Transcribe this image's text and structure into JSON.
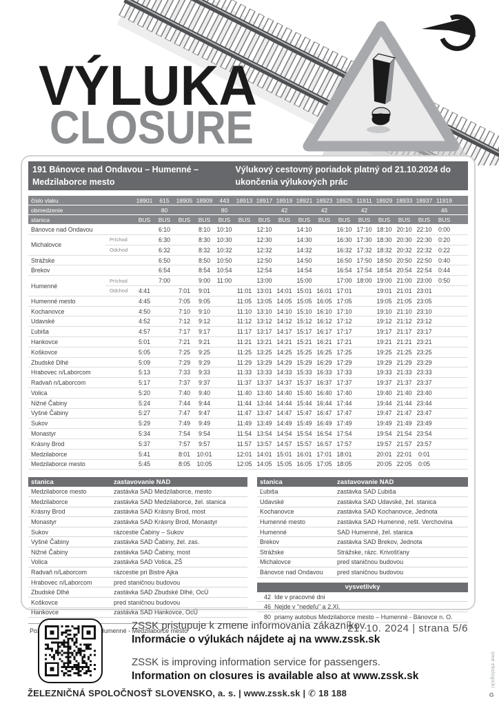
{
  "page": {
    "headline": "VÝLUKA",
    "headline_sub": "CLOSURE",
    "side_note": "sme ekologickí",
    "icons": {
      "phone": "✆",
      "recycle": "♻"
    }
  },
  "info_bar": {
    "route": "191 Bánovce nad Ondavou – Humenné – Medzilaborce mesto",
    "validity": "Výlukový cestovný poriadok platný od 21.10.2024 do ukončenia výlukových prác"
  },
  "timetable": {
    "labels": {
      "train": "číslo vlaku",
      "restriction": "obmedzenie",
      "station": "stanica",
      "bus": "BUS"
    },
    "trains": [
      "18901",
      "615",
      "18905",
      "18909",
      "443",
      "18913",
      "18917",
      "18919",
      "18921",
      "18923",
      "18925",
      "11911",
      "18929",
      "18933",
      "18937",
      "11919"
    ],
    "restrictions": [
      "",
      "80",
      "",
      "",
      "80",
      "",
      "",
      "42",
      "",
      "42",
      "",
      "42",
      "",
      "",
      "",
      "46"
    ],
    "rows": [
      {
        "station": "Bánovce nad Ondavou",
        "sub": "",
        "span": 1,
        "times": [
          "",
          "6:10",
          "",
          "8:10",
          "10:10",
          "",
          "12:10",
          "",
          "14:10",
          "",
          "16:10",
          "17:10",
          "18:10",
          "20:10",
          "22:10",
          "0:00"
        ]
      },
      {
        "station": "Michalovce",
        "sub": "Príchod",
        "span": 2,
        "times": [
          "",
          "6:30",
          "",
          "8:30",
          "10:30",
          "",
          "12:30",
          "",
          "14:30",
          "",
          "16:30",
          "17:30",
          "18:30",
          "20:30",
          "22:30",
          "0:20"
        ]
      },
      {
        "station": "",
        "sub": "Odchod",
        "span": 0,
        "times": [
          "",
          "6:32",
          "",
          "8:32",
          "10:32",
          "",
          "12:32",
          "",
          "14:32",
          "",
          "16:32",
          "17:32",
          "18:32",
          "20:32",
          "22:32",
          "0:22"
        ]
      },
      {
        "station": "Strážske",
        "sub": "",
        "span": 1,
        "times": [
          "",
          "6:50",
          "",
          "8:50",
          "10:50",
          "",
          "12:50",
          "",
          "14:50",
          "",
          "16:50",
          "17:50",
          "18:50",
          "20:50",
          "22:50",
          "0:40"
        ]
      },
      {
        "station": "Brekov",
        "sub": "",
        "span": 1,
        "times": [
          "",
          "6:54",
          "",
          "8:54",
          "10:54",
          "",
          "12:54",
          "",
          "14:54",
          "",
          "16:54",
          "17:54",
          "18:54",
          "20:54",
          "22:54",
          "0:44"
        ]
      },
      {
        "station": "Humenné",
        "sub": "Príchod",
        "span": 2,
        "times": [
          "",
          "7:00",
          "",
          "9:00",
          "11:00",
          "",
          "13:00",
          "",
          "15:00",
          "",
          "17:00",
          "18:00",
          "19:00",
          "21:00",
          "23:00",
          "0:50"
        ]
      },
      {
        "station": "",
        "sub": "Odchod",
        "span": 0,
        "times": [
          "4:41",
          "",
          "7:01",
          "9:01",
          "",
          "11:01",
          "13:01",
          "14:01",
          "15:01",
          "16:01",
          "17:01",
          "",
          "19:01",
          "21:01",
          "23:01",
          ""
        ]
      },
      {
        "station": "Humenné mesto",
        "sub": "",
        "span": 1,
        "times": [
          "4:45",
          "",
          "7:05",
          "9:05",
          "",
          "11:05",
          "13:05",
          "14:05",
          "15:05",
          "16:05",
          "17:05",
          "",
          "19:05",
          "21:05",
          "23:05",
          ""
        ]
      },
      {
        "station": "Kochanovce",
        "sub": "",
        "span": 1,
        "times": [
          "4:50",
          "",
          "7:10",
          "9:10",
          "",
          "11:10",
          "13:10",
          "14:10",
          "15:10",
          "16:10",
          "17:10",
          "",
          "19:10",
          "21:10",
          "23:10",
          ""
        ]
      },
      {
        "station": "Udavské",
        "sub": "",
        "span": 1,
        "times": [
          "4:52",
          "",
          "7:12",
          "9:12",
          "",
          "11:12",
          "13:12",
          "14:12",
          "15:12",
          "16:12",
          "17:12",
          "",
          "19:12",
          "21:12",
          "23:12",
          ""
        ]
      },
      {
        "station": "Ľubiša",
        "sub": "",
        "span": 1,
        "times": [
          "4:57",
          "",
          "7:17",
          "9:17",
          "",
          "11:17",
          "13:17",
          "14:17",
          "15:17",
          "16:17",
          "17:17",
          "",
          "19:17",
          "21:17",
          "23:17",
          ""
        ]
      },
      {
        "station": "Hankovce",
        "sub": "",
        "span": 1,
        "times": [
          "5:01",
          "",
          "7:21",
          "9:21",
          "",
          "11:21",
          "13:21",
          "14:21",
          "15:21",
          "16:21",
          "17:21",
          "",
          "19:21",
          "21:21",
          "23:21",
          ""
        ]
      },
      {
        "station": "Koškovce",
        "sub": "",
        "span": 1,
        "times": [
          "5:05",
          "",
          "7:25",
          "9:25",
          "",
          "11:25",
          "13:25",
          "14:25",
          "15:25",
          "16:25",
          "17:25",
          "",
          "19:25",
          "21:25",
          "23:25",
          ""
        ]
      },
      {
        "station": "Zbudské Dlhé",
        "sub": "",
        "span": 1,
        "times": [
          "5:09",
          "",
          "7:29",
          "9:29",
          "",
          "11:29",
          "13:29",
          "14:29",
          "15:29",
          "16:29",
          "17:29",
          "",
          "19:29",
          "21:29",
          "23:29",
          ""
        ]
      },
      {
        "station": "Hrabovec n/Laborcom",
        "sub": "",
        "span": 1,
        "times": [
          "5:13",
          "",
          "7:33",
          "9:33",
          "",
          "11:33",
          "13:33",
          "14:33",
          "15:33",
          "16:33",
          "17:33",
          "",
          "19:33",
          "21:33",
          "23:33",
          ""
        ]
      },
      {
        "station": "Radvaň n/Laborcom",
        "sub": "",
        "span": 1,
        "times": [
          "5:17",
          "",
          "7:37",
          "9:37",
          "",
          "11:37",
          "13:37",
          "14:37",
          "15:37",
          "16:37",
          "17:37",
          "",
          "19:37",
          "21:37",
          "23:37",
          ""
        ]
      },
      {
        "station": "Volica",
        "sub": "",
        "span": 1,
        "times": [
          "5:20",
          "",
          "7:40",
          "9:40",
          "",
          "11:40",
          "13:40",
          "14:40",
          "15:40",
          "16:40",
          "17:40",
          "",
          "19:40",
          "21:40",
          "23:40",
          ""
        ]
      },
      {
        "station": "Nižné Čabiny",
        "sub": "",
        "span": 1,
        "times": [
          "5:24",
          "",
          "7:44",
          "9:44",
          "",
          "11:44",
          "13:44",
          "14:44",
          "15:44",
          "16:44",
          "17:44",
          "",
          "19:44",
          "21:44",
          "23:44",
          ""
        ]
      },
      {
        "station": "Vyšné Čabiny",
        "sub": "",
        "span": 1,
        "times": [
          "5:27",
          "",
          "7:47",
          "9:47",
          "",
          "11:47",
          "13:47",
          "14:47",
          "15:47",
          "16:47",
          "17:47",
          "",
          "19:47",
          "21:47",
          "23:47",
          ""
        ]
      },
      {
        "station": "Sukov",
        "sub": "",
        "span": 1,
        "times": [
          "5:29",
          "",
          "7:49",
          "9:49",
          "",
          "11:49",
          "13:49",
          "14:49",
          "15:49",
          "16:49",
          "17:49",
          "",
          "19:49",
          "21:49",
          "23:49",
          ""
        ]
      },
      {
        "station": "Monastyr",
        "sub": "",
        "span": 1,
        "times": [
          "5:34",
          "",
          "7:54",
          "9:54",
          "",
          "11:54",
          "13:54",
          "14:54",
          "15:54",
          "16:54",
          "17:54",
          "",
          "19:54",
          "21:54",
          "23:54",
          ""
        ]
      },
      {
        "station": "Krásny Brod",
        "sub": "",
        "span": 1,
        "times": [
          "5:37",
          "",
          "7:57",
          "9:57",
          "",
          "11:57",
          "13:57",
          "14:57",
          "15:57",
          "16:57",
          "17:57",
          "",
          "19:57",
          "21:57",
          "23:57",
          ""
        ]
      },
      {
        "station": "Medzilaborce",
        "sub": "",
        "span": 1,
        "times": [
          "5:41",
          "",
          "8:01",
          "10:01",
          "",
          "12:01",
          "14:01",
          "15:01",
          "16:01",
          "17:01",
          "18:01",
          "",
          "20:01",
          "22:01",
          "0:01",
          ""
        ]
      },
      {
        "station": "Medzilaborce mesto",
        "sub": "",
        "span": 1,
        "times": [
          "5:45",
          "",
          "8:05",
          "10:05",
          "",
          "12:05",
          "14:05",
          "15:05",
          "16:05",
          "17:05",
          "18:05",
          "",
          "20:05",
          "22:05",
          "0:05",
          ""
        ]
      }
    ]
  },
  "nad_left": {
    "headers": [
      "stanica",
      "zastavovanie NAD"
    ],
    "rows": [
      [
        "Medzilaborce mesto",
        "zastávka SAD Medzilaborce, mesto"
      ],
      [
        "Medzilaborce",
        "zastávka SAD Medzilaborce, žel. stanica"
      ],
      [
        "Krásny Brod",
        "zastávka SAD Krásny Brod, most"
      ],
      [
        "Monastyr",
        "zastávka SAD Krásny Brod, Monastyr"
      ],
      [
        "Sukov",
        "rázcestie Čabiny – Sukov"
      ],
      [
        "Vyšné Čabiny",
        "zastávka SAD Čabiny, žel. zas."
      ],
      [
        "Nižné Čabiny",
        "zastávka SAD Čabiny, most"
      ],
      [
        "Volica",
        "zastávka SAD Volica, ZŠ"
      ],
      [
        "Radvaň n/Laborcom",
        "rázcestie pri Bistre Ajka"
      ],
      [
        "Hrabovec n/Laborcom",
        "pred staničnou budovou"
      ],
      [
        "Zbudské Dlhé",
        "zastávka SAD Zbudské Dlhé, OcÚ"
      ],
      [
        "Koškovce",
        "pred staničnou budovou"
      ],
      [
        "Hankovce",
        "zastávka SAD Hankovce, OcÚ"
      ]
    ]
  },
  "nad_right": {
    "headers": [
      "stanica",
      "zastavovanie NAD"
    ],
    "rows": [
      [
        "Ľubiša",
        "zastávka SAD Ľubiša"
      ],
      [
        "Udavské",
        "zastávka SAD Udavské, žel. stanica"
      ],
      [
        "Kochanovce",
        "zastávka SAD Kochanovce, Jednota"
      ],
      [
        "Humenné mesto",
        "zastávka SAD Humenné, rešt. Verchovina"
      ],
      [
        "Humenné",
        "SAD Humenné, žel. stanica"
      ],
      [
        "Brekov",
        "zastávka SAD Brekov, Jednota"
      ],
      [
        "Strážske",
        "Strážske, rázc. Krivošťany"
      ],
      [
        "Michalovce",
        "pred staničnou budovou"
      ],
      [
        "Bánovce nad Ondavou",
        "pred staničnou budovou"
      ]
    ]
  },
  "legend": {
    "title": "vysvetlivky",
    "items": [
      [
        "42",
        "Ide v pracovné dni"
      ],
      [
        "46",
        "Nejde v \"nedeľu\" a 2.XI."
      ],
      [
        "80",
        "priamy autobus Medzilaborce mesto – Humenné - Bánovce n. O."
      ]
    ]
  },
  "note": "Poznámka: SVS v úseku Humenné - Medzilaborce mesto",
  "page_footer": {
    "date": "21. 10. 2024",
    "sep": "|",
    "page": "strana 5/6"
  },
  "qr_section": {
    "sk_line1": "ZSSK pristupuje k zmene informovania zákazníkov.",
    "sk_line2": "Informácie o výlukách nájdete aj na www.zssk.sk",
    "en_line1": "ZSSK is improving information service for passengers.",
    "en_line2": "Information on closures is available also at www.zssk.sk"
  },
  "company_bar": {
    "text": "ŽELEZNIČNÁ SPOLOČNOSŤ SLOVENSKO, a. s. | www.zssk.sk |",
    "phone": "18 188"
  },
  "colors": {
    "bar_dark": "#66686b",
    "table_header": "#85878a",
    "subheader": "#6d6e71",
    "closure_gray": "#8a8c8e"
  }
}
